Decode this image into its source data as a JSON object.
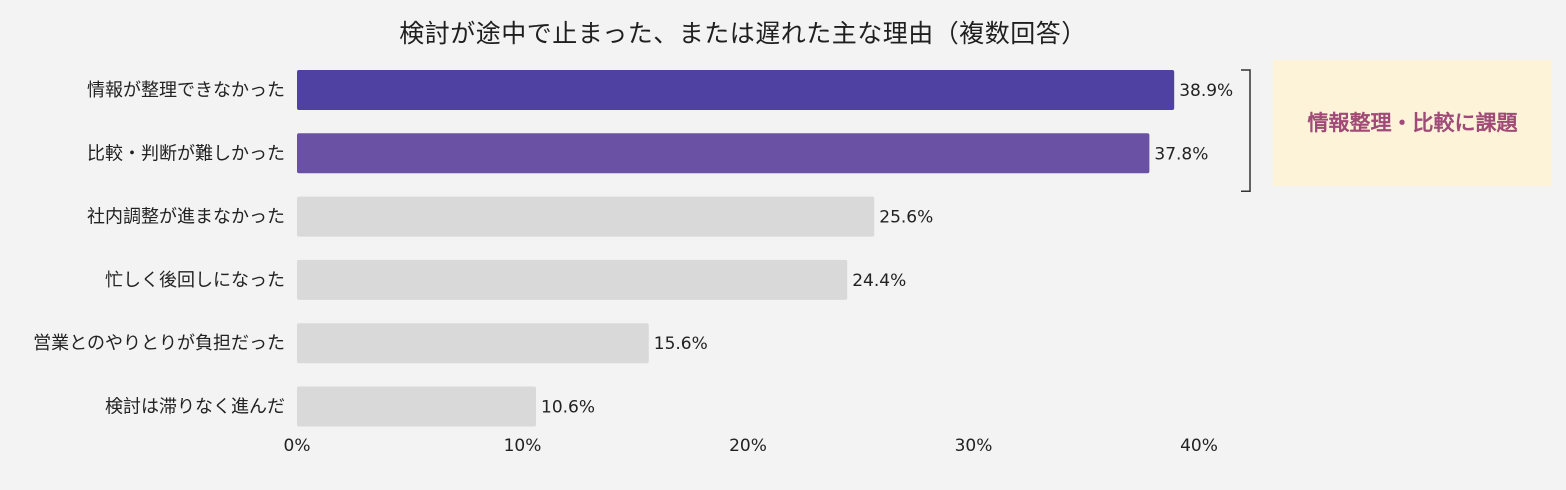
{
  "colors": {
    "background": "#f3f3f3",
    "highlight_1": "#4f41a1",
    "highlight_2": "#6a51a4",
    "default_bar": "#d9d9d9",
    "callout_bg": "#fdf3d9",
    "callout_text": "#a04a78",
    "bracket": "#333333"
  },
  "callout": {
    "text": "情報整理・比較に課題"
  },
  "chart_data": {
    "type": "bar",
    "orientation": "horizontal",
    "title": "検討が途中で止まった、または遅れた主な理由（複数回答）",
    "categories": [
      "情報が整理できなかった",
      "比較・判断が難しかった",
      "社内調整が進まなかった",
      "忙しく後回しになった",
      "営業とのやりとりが負担だった",
      "検討は滞りなく進んだ"
    ],
    "values": [
      38.9,
      37.8,
      25.6,
      24.4,
      15.6,
      10.6
    ],
    "value_labels": [
      "38.9%",
      "37.8%",
      "25.6%",
      "24.4%",
      "15.6%",
      "10.6%"
    ],
    "highlighted": [
      true,
      true,
      false,
      false,
      false,
      false
    ],
    "xlim": [
      0,
      40
    ],
    "xticks": [
      0,
      10,
      20,
      30,
      40
    ],
    "xtick_labels": [
      "0%",
      "10%",
      "20%",
      "30%",
      "40%"
    ],
    "xlabel": "",
    "ylabel": "",
    "grid": false,
    "legend": "none"
  }
}
